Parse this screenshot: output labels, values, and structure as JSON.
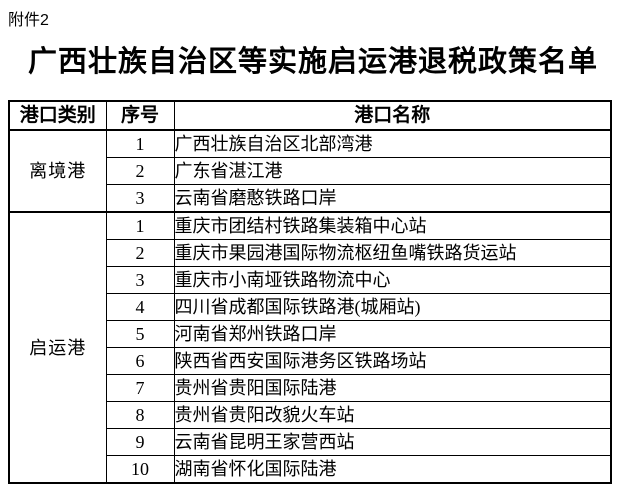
{
  "page": {
    "attachment_label": "附件2",
    "title": "广西壮族自治区等实施启运港退税政策名单"
  },
  "colors": {
    "text": "#000000",
    "background": "#ffffff",
    "border": "#000000"
  },
  "table": {
    "headers": [
      "港口类别",
      "序号",
      "港口名称"
    ],
    "sections": [
      {
        "category": "离境港",
        "rows": [
          {
            "no": "1",
            "name": "广西壮族自治区北部湾港"
          },
          {
            "no": "2",
            "name": "广东省湛江港"
          },
          {
            "no": "3",
            "name": "云南省磨憨铁路口岸"
          }
        ]
      },
      {
        "category": "启运港",
        "rows": [
          {
            "no": "1",
            "name": "重庆市团结村铁路集装箱中心站"
          },
          {
            "no": "2",
            "name": "重庆市果园港国际物流枢纽鱼嘴铁路货运站"
          },
          {
            "no": "3",
            "name": "重庆市小南垭铁路物流中心"
          },
          {
            "no": "4",
            "name": "四川省成都国际铁路港(城厢站)"
          },
          {
            "no": "5",
            "name": "河南省郑州铁路口岸"
          },
          {
            "no": "6",
            "name": "陕西省西安国际港务区铁路场站"
          },
          {
            "no": "7",
            "name": "贵州省贵阳国际陆港"
          },
          {
            "no": "8",
            "name": "贵州省贵阳改貌火车站"
          },
          {
            "no": "9",
            "name": "云南省昆明王家营西站"
          },
          {
            "no": "10",
            "name": "湖南省怀化国际陆港"
          }
        ]
      }
    ]
  }
}
